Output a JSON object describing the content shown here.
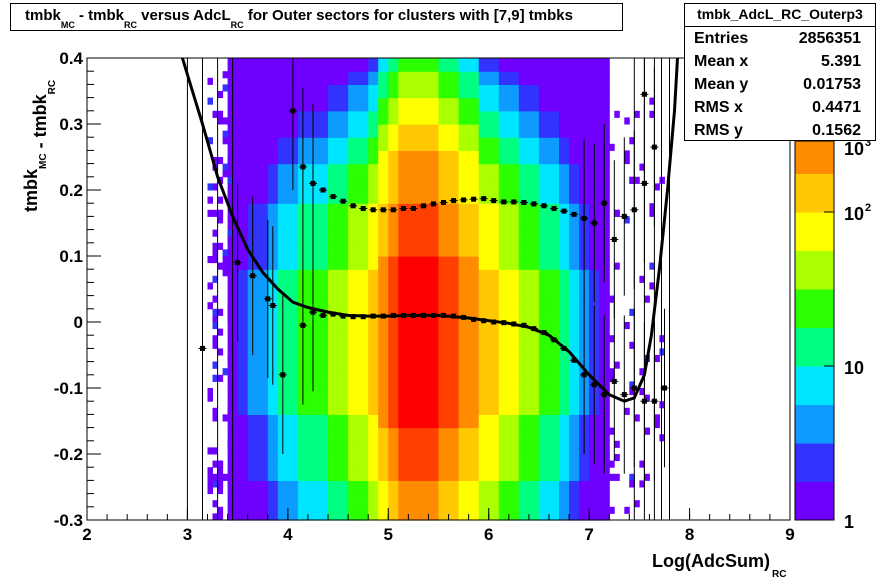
{
  "title": {
    "parts": [
      {
        "t": "tmbk",
        "s": "MC"
      },
      {
        "t": " - tmbk",
        "s": "RC"
      },
      {
        "t": " versus AdcL",
        "s": "RC"
      },
      {
        "t": " for Outer sectors for clusters with [7,9] tmbks",
        "s": ""
      }
    ]
  },
  "stats": {
    "name": "tmbk_AdcL_RC_Outerp3",
    "rows": [
      {
        "key": "Entries",
        "value": "2856351"
      },
      {
        "key": "Mean x",
        "value": "5.391"
      },
      {
        "key": "Mean y",
        "value": "0.01753"
      },
      {
        "key": "RMS x",
        "value": "0.4471"
      },
      {
        "key": "RMS y",
        "value": "0.1562"
      }
    ]
  },
  "axes": {
    "xlabel": {
      "main": "Log(AdcSum)",
      "sub": "RC"
    },
    "ylabel": {
      "parts": [
        {
          "t": "tmbk",
          "s": "MC"
        },
        {
          "t": " - tmbk",
          "s": "RC"
        }
      ]
    }
  },
  "chart_data": {
    "type": "heatmap",
    "xlim": [
      2,
      9
    ],
    "ylim": [
      -0.3,
      0.4
    ],
    "x_ticks": [
      "2",
      "3",
      "4",
      "5",
      "6",
      "7",
      "8",
      "9"
    ],
    "y_ticks": [
      "-0.3",
      "-0.2",
      "-0.1",
      "0",
      "0.1",
      "0.2",
      "0.3",
      "0.4"
    ],
    "z_scale": "log",
    "zlim": [
      1,
      1000
    ],
    "palette": [
      "#6f00ff",
      "#3333ff",
      "#0e9bff",
      "#00e5ff",
      "#00ff80",
      "#2bff00",
      "#aaff00",
      "#ffff00",
      "#ffc800",
      "#ff8c00",
      "#ff4000",
      "#ff0000"
    ],
    "palette_ticks": [
      {
        "value": 1,
        "base": "1",
        "exp": ""
      },
      {
        "value": 10,
        "base": "10",
        "exp": ""
      },
      {
        "value": 100,
        "base": "10",
        "exp": "2"
      },
      {
        "value": 1000,
        "base": "10",
        "exp": "3"
      }
    ],
    "colz_columns": [
      {
        "x": 3.45,
        "c": 0
      },
      {
        "x": 3.55,
        "c": 1
      },
      {
        "x": 3.65,
        "c": 2
      },
      {
        "x": 3.75,
        "c": 2
      },
      {
        "x": 3.85,
        "c": 3
      },
      {
        "x": 3.95,
        "c": 4
      },
      {
        "x": 4.05,
        "c": 4
      },
      {
        "x": 4.15,
        "c": 5
      },
      {
        "x": 4.25,
        "c": 5
      },
      {
        "x": 4.35,
        "c": 5
      },
      {
        "x": 4.45,
        "c": 6
      },
      {
        "x": 4.55,
        "c": 6
      },
      {
        "x": 4.65,
        "c": 7
      },
      {
        "x": 4.75,
        "c": 7
      },
      {
        "x": 4.85,
        "c": 8
      },
      {
        "x": 4.95,
        "c": 9
      },
      {
        "x": 5.05,
        "c": 10
      },
      {
        "x": 5.15,
        "c": 11
      },
      {
        "x": 5.25,
        "c": 11
      },
      {
        "x": 5.35,
        "c": 11
      },
      {
        "x": 5.45,
        "c": 11
      },
      {
        "x": 5.55,
        "c": 10
      },
      {
        "x": 5.65,
        "c": 10
      },
      {
        "x": 5.75,
        "c": 9
      },
      {
        "x": 5.85,
        "c": 9
      },
      {
        "x": 5.95,
        "c": 8
      },
      {
        "x": 6.05,
        "c": 8
      },
      {
        "x": 6.15,
        "c": 7
      },
      {
        "x": 6.25,
        "c": 7
      },
      {
        "x": 6.35,
        "c": 6
      },
      {
        "x": 6.45,
        "c": 6
      },
      {
        "x": 6.55,
        "c": 5
      },
      {
        "x": 6.65,
        "c": 5
      },
      {
        "x": 6.75,
        "c": 4
      },
      {
        "x": 6.85,
        "c": 3
      },
      {
        "x": 6.95,
        "c": 2
      },
      {
        "x": 7.05,
        "c": 1
      },
      {
        "x": 7.15,
        "c": 0
      }
    ],
    "profile_lower": [
      {
        "x": 3.15,
        "y": -0.04
      },
      {
        "x": 3.5,
        "y": 0.09
      },
      {
        "x": 3.65,
        "y": 0.07
      },
      {
        "x": 3.8,
        "y": 0.035
      },
      {
        "x": 3.85,
        "y": 0.025
      },
      {
        "x": 3.95,
        "y": -0.08
      },
      {
        "x": 4.05,
        "y": 0.32
      },
      {
        "x": 4.15,
        "y": -0.005
      },
      {
        "x": 4.25,
        "y": 0.015
      },
      {
        "x": 4.35,
        "y": 0.01
      },
      {
        "x": 4.45,
        "y": 0.012
      },
      {
        "x": 4.55,
        "y": 0.009
      },
      {
        "x": 4.65,
        "y": 0.008
      },
      {
        "x": 4.75,
        "y": 0.008
      },
      {
        "x": 4.85,
        "y": 0.009
      },
      {
        "x": 4.95,
        "y": 0.009
      },
      {
        "x": 5.05,
        "y": 0.01
      },
      {
        "x": 5.15,
        "y": 0.01
      },
      {
        "x": 5.25,
        "y": 0.01
      },
      {
        "x": 5.35,
        "y": 0.01
      },
      {
        "x": 5.45,
        "y": 0.01
      },
      {
        "x": 5.55,
        "y": 0.01
      },
      {
        "x": 5.65,
        "y": 0.009
      },
      {
        "x": 5.75,
        "y": 0.007
      },
      {
        "x": 5.85,
        "y": 0.004
      },
      {
        "x": 5.95,
        "y": 0.002
      },
      {
        "x": 6.05,
        "y": 0.0
      },
      {
        "x": 6.15,
        "y": -0.001
      },
      {
        "x": 6.25,
        "y": -0.003
      },
      {
        "x": 6.35,
        "y": -0.005
      },
      {
        "x": 6.45,
        "y": -0.01
      },
      {
        "x": 6.55,
        "y": -0.016
      },
      {
        "x": 6.65,
        "y": -0.027
      },
      {
        "x": 6.75,
        "y": -0.04
      },
      {
        "x": 6.85,
        "y": -0.058
      },
      {
        "x": 6.95,
        "y": -0.08
      },
      {
        "x": 7.05,
        "y": -0.095
      },
      {
        "x": 7.15,
        "y": -0.11
      },
      {
        "x": 7.25,
        "y": -0.09
      },
      {
        "x": 7.35,
        "y": -0.11
      },
      {
        "x": 7.45,
        "y": -0.1
      },
      {
        "x": 7.55,
        "y": -0.12
      },
      {
        "x": 7.65,
        "y": -0.12
      },
      {
        "x": 7.75,
        "y": -0.1
      }
    ],
    "profile_upper": [
      {
        "x": 4.15,
        "y": 0.235
      },
      {
        "x": 4.25,
        "y": 0.21
      },
      {
        "x": 4.35,
        "y": 0.2
      },
      {
        "x": 4.45,
        "y": 0.19
      },
      {
        "x": 4.55,
        "y": 0.183
      },
      {
        "x": 4.65,
        "y": 0.176
      },
      {
        "x": 4.75,
        "y": 0.172
      },
      {
        "x": 4.85,
        "y": 0.17
      },
      {
        "x": 4.95,
        "y": 0.17
      },
      {
        "x": 5.05,
        "y": 0.17
      },
      {
        "x": 5.15,
        "y": 0.172
      },
      {
        "x": 5.25,
        "y": 0.172
      },
      {
        "x": 5.35,
        "y": 0.176
      },
      {
        "x": 5.45,
        "y": 0.179
      },
      {
        "x": 5.55,
        "y": 0.181
      },
      {
        "x": 5.65,
        "y": 0.184
      },
      {
        "x": 5.75,
        "y": 0.185
      },
      {
        "x": 5.85,
        "y": 0.186
      },
      {
        "x": 5.95,
        "y": 0.187
      },
      {
        "x": 6.05,
        "y": 0.184
      },
      {
        "x": 6.15,
        "y": 0.182
      },
      {
        "x": 6.25,
        "y": 0.182
      },
      {
        "x": 6.35,
        "y": 0.181
      },
      {
        "x": 6.45,
        "y": 0.179
      },
      {
        "x": 6.55,
        "y": 0.176
      },
      {
        "x": 6.65,
        "y": 0.172
      },
      {
        "x": 6.75,
        "y": 0.168
      },
      {
        "x": 6.85,
        "y": 0.163
      },
      {
        "x": 6.95,
        "y": 0.157
      },
      {
        "x": 7.05,
        "y": 0.15
      },
      {
        "x": 7.15,
        "y": 0.18
      },
      {
        "x": 7.25,
        "y": 0.125
      },
      {
        "x": 7.35,
        "y": 0.16
      },
      {
        "x": 7.45,
        "y": 0.17
      },
      {
        "x": 7.55,
        "y": 0.21
      },
      {
        "x": 7.65,
        "y": 0.265
      },
      {
        "x": 7.55,
        "y": 0.345
      }
    ],
    "fit_curve": [
      {
        "x": 2.95,
        "y": 0.4
      },
      {
        "x": 3.05,
        "y": 0.35
      },
      {
        "x": 3.15,
        "y": 0.3
      },
      {
        "x": 3.3,
        "y": 0.22
      },
      {
        "x": 3.45,
        "y": 0.16
      },
      {
        "x": 3.6,
        "y": 0.11
      },
      {
        "x": 3.75,
        "y": 0.075
      },
      {
        "x": 3.9,
        "y": 0.05
      },
      {
        "x": 4.05,
        "y": 0.03
      },
      {
        "x": 4.2,
        "y": 0.022
      },
      {
        "x": 4.4,
        "y": 0.015
      },
      {
        "x": 4.6,
        "y": 0.01
      },
      {
        "x": 4.8,
        "y": 0.009
      },
      {
        "x": 5.0,
        "y": 0.009
      },
      {
        "x": 5.2,
        "y": 0.01
      },
      {
        "x": 5.5,
        "y": 0.01
      },
      {
        "x": 5.8,
        "y": 0.006
      },
      {
        "x": 6.0,
        "y": 0.002
      },
      {
        "x": 6.2,
        "y": -0.002
      },
      {
        "x": 6.4,
        "y": -0.008
      },
      {
        "x": 6.6,
        "y": -0.02
      },
      {
        "x": 6.8,
        "y": -0.045
      },
      {
        "x": 7.0,
        "y": -0.08
      },
      {
        "x": 7.2,
        "y": -0.11
      },
      {
        "x": 7.35,
        "y": -0.12
      },
      {
        "x": 7.45,
        "y": -0.115
      },
      {
        "x": 7.55,
        "y": -0.08
      },
      {
        "x": 7.62,
        "y": -0.02
      },
      {
        "x": 7.7,
        "y": 0.08
      },
      {
        "x": 7.78,
        "y": 0.2
      },
      {
        "x": 7.85,
        "y": 0.32
      },
      {
        "x": 7.88,
        "y": 0.4
      }
    ]
  }
}
